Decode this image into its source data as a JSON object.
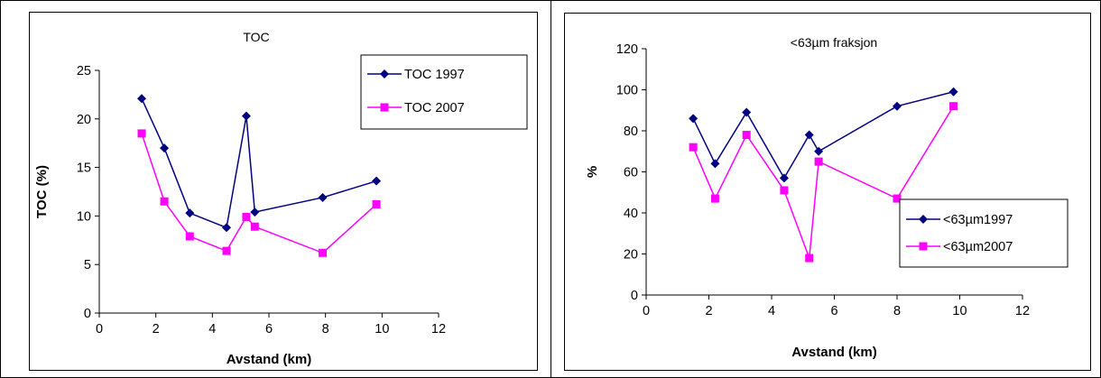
{
  "chart_data": [
    {
      "type": "line",
      "title": "TOC",
      "xlabel": "Avstand (km)",
      "ylabel": "TOC (%)",
      "xlim": [
        0,
        12
      ],
      "ylim": [
        0,
        25
      ],
      "x_ticks": [
        "0",
        "2",
        "4",
        "6",
        "8",
        "10",
        "12"
      ],
      "y_ticks": [
        "0",
        "5",
        "10",
        "15",
        "20",
        "25"
      ],
      "grid": false,
      "legend_position": "top-right",
      "series": [
        {
          "name": "TOC 1997",
          "color": "#000080",
          "marker": "diamond",
          "x": [
            1.5,
            2.3,
            3.2,
            4.5,
            5.2,
            5.5,
            7.9,
            9.8
          ],
          "y": [
            22.1,
            17.0,
            10.3,
            8.8,
            20.3,
            10.4,
            11.9,
            13.6
          ]
        },
        {
          "name": "TOC 2007",
          "color": "#ff00ff",
          "marker": "square",
          "x": [
            1.5,
            2.3,
            3.2,
            4.5,
            5.2,
            5.5,
            7.9,
            9.8
          ],
          "y": [
            18.5,
            11.5,
            7.9,
            6.4,
            9.9,
            8.9,
            6.2,
            11.2
          ]
        }
      ]
    },
    {
      "type": "line",
      "title": "<63µm fraksjon",
      "xlabel": "Avstand (km)",
      "ylabel": "%",
      "xlim": [
        0,
        12
      ],
      "ylim": [
        0,
        120
      ],
      "x_ticks": [
        "0",
        "2",
        "4",
        "6",
        "8",
        "10",
        "12"
      ],
      "y_ticks": [
        "0",
        "20",
        "40",
        "60",
        "80",
        "100",
        "120"
      ],
      "grid": false,
      "legend_position": "bottom-right",
      "series": [
        {
          "name": "<63µm1997",
          "color": "#000080",
          "marker": "diamond",
          "x": [
            1.5,
            2.2,
            3.2,
            4.4,
            5.2,
            5.5,
            8.0,
            9.8
          ],
          "y": [
            86,
            64,
            89,
            57,
            78,
            70,
            92,
            99
          ]
        },
        {
          "name": "<63µm2007",
          "color": "#ff00ff",
          "marker": "square",
          "x": [
            1.5,
            2.2,
            3.2,
            4.4,
            5.2,
            5.5,
            8.0,
            9.8
          ],
          "y": [
            72,
            47,
            78,
            51,
            18,
            65,
            47,
            92
          ]
        }
      ]
    }
  ]
}
